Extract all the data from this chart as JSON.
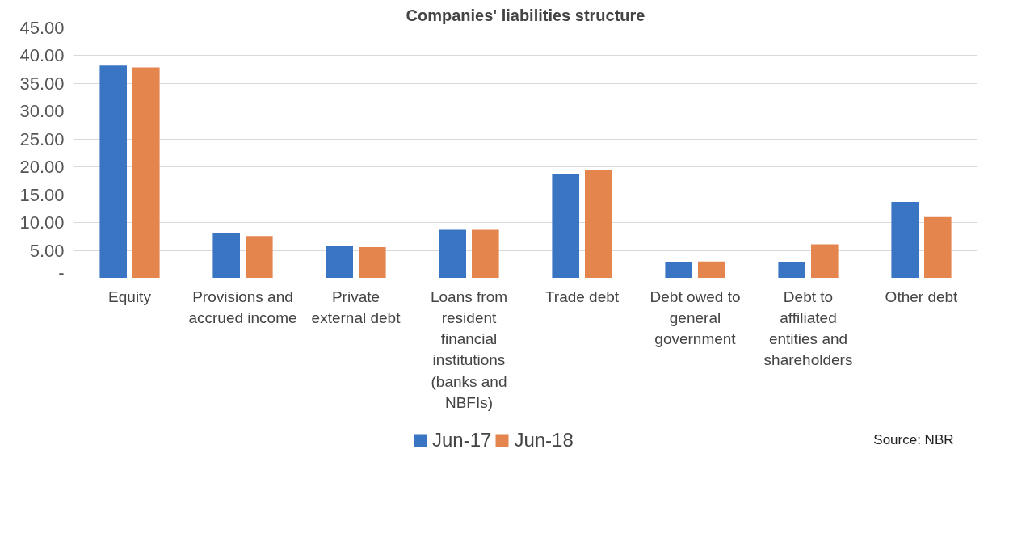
{
  "chart_data": {
    "type": "bar",
    "title": "Companies' liabilities structure",
    "categories": [
      "Equity",
      "Provisions and accrued income",
      "Private external debt",
      "Loans from resident financial institutions (banks and NBFIs)",
      "Trade debt",
      "Debt owed to general government",
      "Debt to affiliated entities and shareholders",
      "Other debt"
    ],
    "series": [
      {
        "name": "Jun-17",
        "color": "#3a75c4",
        "values": [
          38.2,
          8.2,
          5.8,
          8.7,
          18.8,
          2.9,
          2.9,
          13.7
        ]
      },
      {
        "name": "Jun-18",
        "color": "#e5854e",
        "values": [
          37.9,
          7.6,
          5.6,
          8.7,
          19.5,
          3.0,
          6.1,
          11.0
        ]
      }
    ],
    "ylim": [
      0,
      45
    ],
    "yticks": [
      {
        "value": 0,
        "label": "-"
      },
      {
        "value": 5,
        "label": "5.00"
      },
      {
        "value": 10,
        "label": "10.00"
      },
      {
        "value": 15,
        "label": "15.00"
      },
      {
        "value": 20,
        "label": "20.00"
      },
      {
        "value": 25,
        "label": "25.00"
      },
      {
        "value": 30,
        "label": "30.00"
      },
      {
        "value": 35,
        "label": "35.00"
      },
      {
        "value": 40,
        "label": "40.00"
      },
      {
        "value": 45,
        "label": "45.00"
      }
    ],
    "grid": "y",
    "legend": "bottom",
    "annotations": [
      "Source: NBR"
    ]
  }
}
